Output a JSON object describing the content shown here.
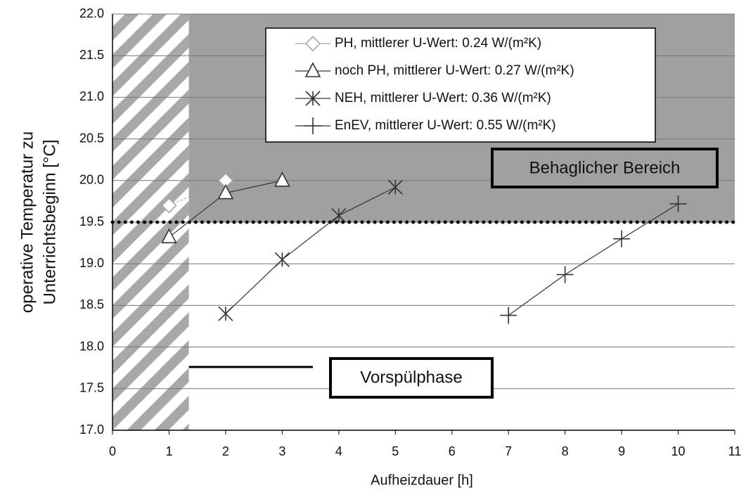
{
  "chart_data": {
    "type": "line",
    "xlabel": "Aufheizdauer [h]",
    "ylabel": [
      "operative Temperatur zu",
      "Unterrichtsbeginn [°C]"
    ],
    "xlim": [
      0,
      11
    ],
    "xticks": [
      0,
      1,
      2,
      3,
      4,
      5,
      6,
      7,
      8,
      9,
      10,
      11
    ],
    "ylim": [
      17,
      22
    ],
    "yticks": [
      {
        "value": 17,
        "label": "17.0"
      },
      17.5,
      {
        "value": 18,
        "label": "18.0"
      },
      18.5,
      {
        "value": 19,
        "label": "19.0"
      },
      19.5,
      {
        "value": 20,
        "label": "20.0"
      },
      20.5,
      {
        "value": 21,
        "label": "21.0"
      },
      21.5,
      {
        "value": 22,
        "label": "22.0"
      }
    ],
    "grid": true,
    "threshold": 19.5,
    "comfort_region": {
      "x_start": 1.35,
      "y_start": 19.5,
      "color": "#a0a0a0"
    },
    "preheat_region": {
      "x_end": 1.35
    },
    "annotations": [
      "Behaglicher Bereich",
      "Vorspülphase"
    ],
    "series": [
      {
        "name": "PH, mittlerer U-Wert: 0.24 W/(m²K)",
        "color": "#a8a8a8",
        "marker": "diamond",
        "x": [
          1,
          2
        ],
        "values": [
          19.7,
          20.0
        ]
      },
      {
        "name": "noch PH, mittlerer U-Wert: 0.27 W/(m²K)",
        "color": "#333333",
        "marker": "triangle",
        "x": [
          1,
          2,
          3
        ],
        "values": [
          19.32,
          19.85,
          20.0
        ]
      },
      {
        "name": "NEH, mittlerer U-Wert: 0.36 W/(m²K)",
        "color": "#333333",
        "marker": "asterisk",
        "x": [
          2,
          3,
          4,
          5
        ],
        "values": [
          18.4,
          19.05,
          19.58,
          19.92
        ]
      },
      {
        "name": "EnEV, mittlerer U-Wert: 0.55 W/(m²K)",
        "color": "#333333",
        "marker": "plus",
        "x": [
          7,
          8,
          9,
          10
        ],
        "values": [
          18.38,
          18.87,
          19.3,
          19.72
        ]
      }
    ]
  }
}
